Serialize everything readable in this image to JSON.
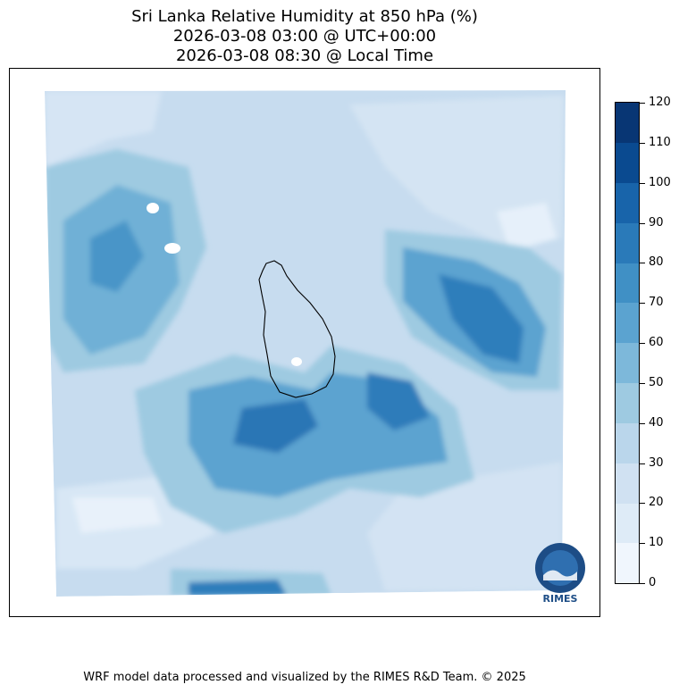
{
  "title": {
    "line1": "Sri Lanka Relative Humidity at 850 hPa (%)",
    "line2": "2026-03-08 03:00 @ UTC+00:00",
    "line3": "2026-03-08 08:30 @ Local Time"
  },
  "colorbar": {
    "levels": [
      "0",
      "10",
      "20",
      "30",
      "40",
      "50",
      "60",
      "70",
      "80",
      "90",
      "100",
      "110",
      "120"
    ],
    "colors": [
      "#f0f6fd",
      "#deebf7",
      "#d0e1f2",
      "#bad6eb",
      "#9ecae1",
      "#7db8da",
      "#5ba3d0",
      "#4090c5",
      "#2a7ab9",
      "#1864aa",
      "#0a4a90",
      "#083674"
    ]
  },
  "logo": {
    "text": "RIMES"
  },
  "footer": "WRF model data processed and visualized by the RIMES R&D Team. © 2025"
}
